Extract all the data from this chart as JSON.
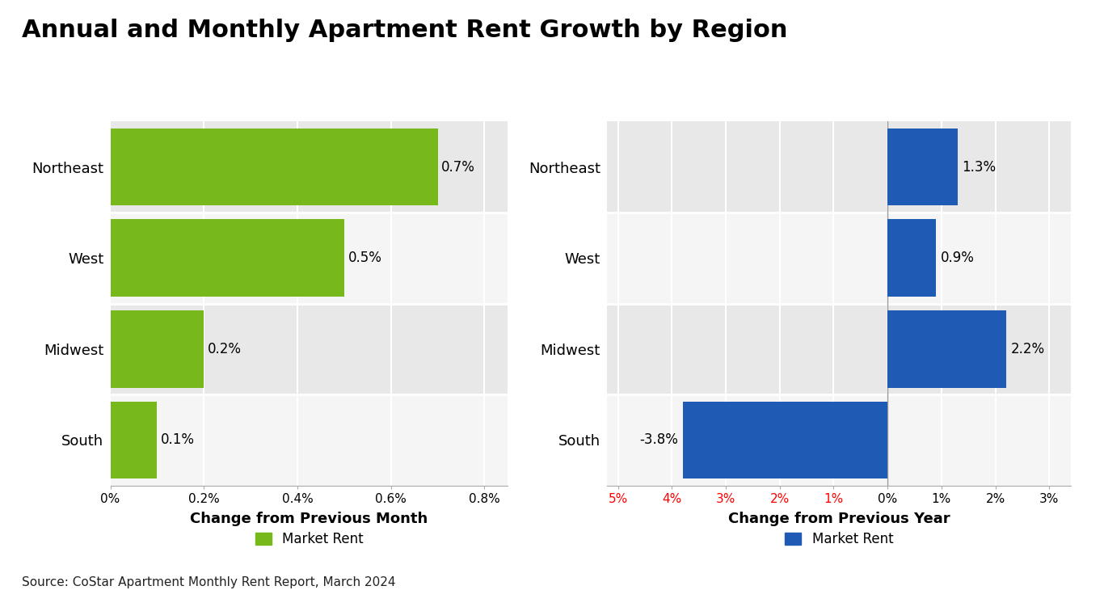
{
  "title": "Annual and Monthly Apartment Rent Growth by Region",
  "source": "Source: CoStar Apartment Monthly Rent Report, March 2024",
  "regions": [
    "Northeast",
    "West",
    "Midwest",
    "South"
  ],
  "monthly_values": [
    0.7,
    0.5,
    0.2,
    0.1
  ],
  "annual_values": [
    1.3,
    0.9,
    2.2,
    -3.8
  ],
  "monthly_labels": [
    "0.7%",
    "0.5%",
    "0.2%",
    "0.1%"
  ],
  "annual_labels": [
    "1.3%",
    "0.9%",
    "2.2%",
    "-3.8%"
  ],
  "monthly_color": "#77b81a",
  "annual_color": "#1f5bb5",
  "row_color_even": "#e8e8e8",
  "row_color_odd": "#f5f5f5",
  "bg_color": "#ffffff",
  "xlabel_monthly": "Change from Previous Month",
  "xlabel_annual": "Change from Previous Year",
  "legend_monthly": "Market Rent",
  "legend_annual": "Market Rent",
  "monthly_xlim_max": 0.85,
  "monthly_xtick_vals": [
    0.0,
    0.2,
    0.4,
    0.6,
    0.8
  ],
  "monthly_xtick_labels": [
    "0%",
    "0.2%",
    "0.4%",
    "0.6%",
    "0.8%"
  ],
  "annual_xlim_min": -5.2,
  "annual_xlim_max": 3.4,
  "annual_xtick_vals": [
    -5,
    -4,
    -3,
    -2,
    -1,
    0,
    1,
    2,
    3
  ],
  "annual_xtick_labels": [
    "5%",
    "4%",
    "3%",
    "2%",
    "1%",
    "0%",
    "1%",
    "2%",
    "3%"
  ],
  "annual_negative_count": 5
}
